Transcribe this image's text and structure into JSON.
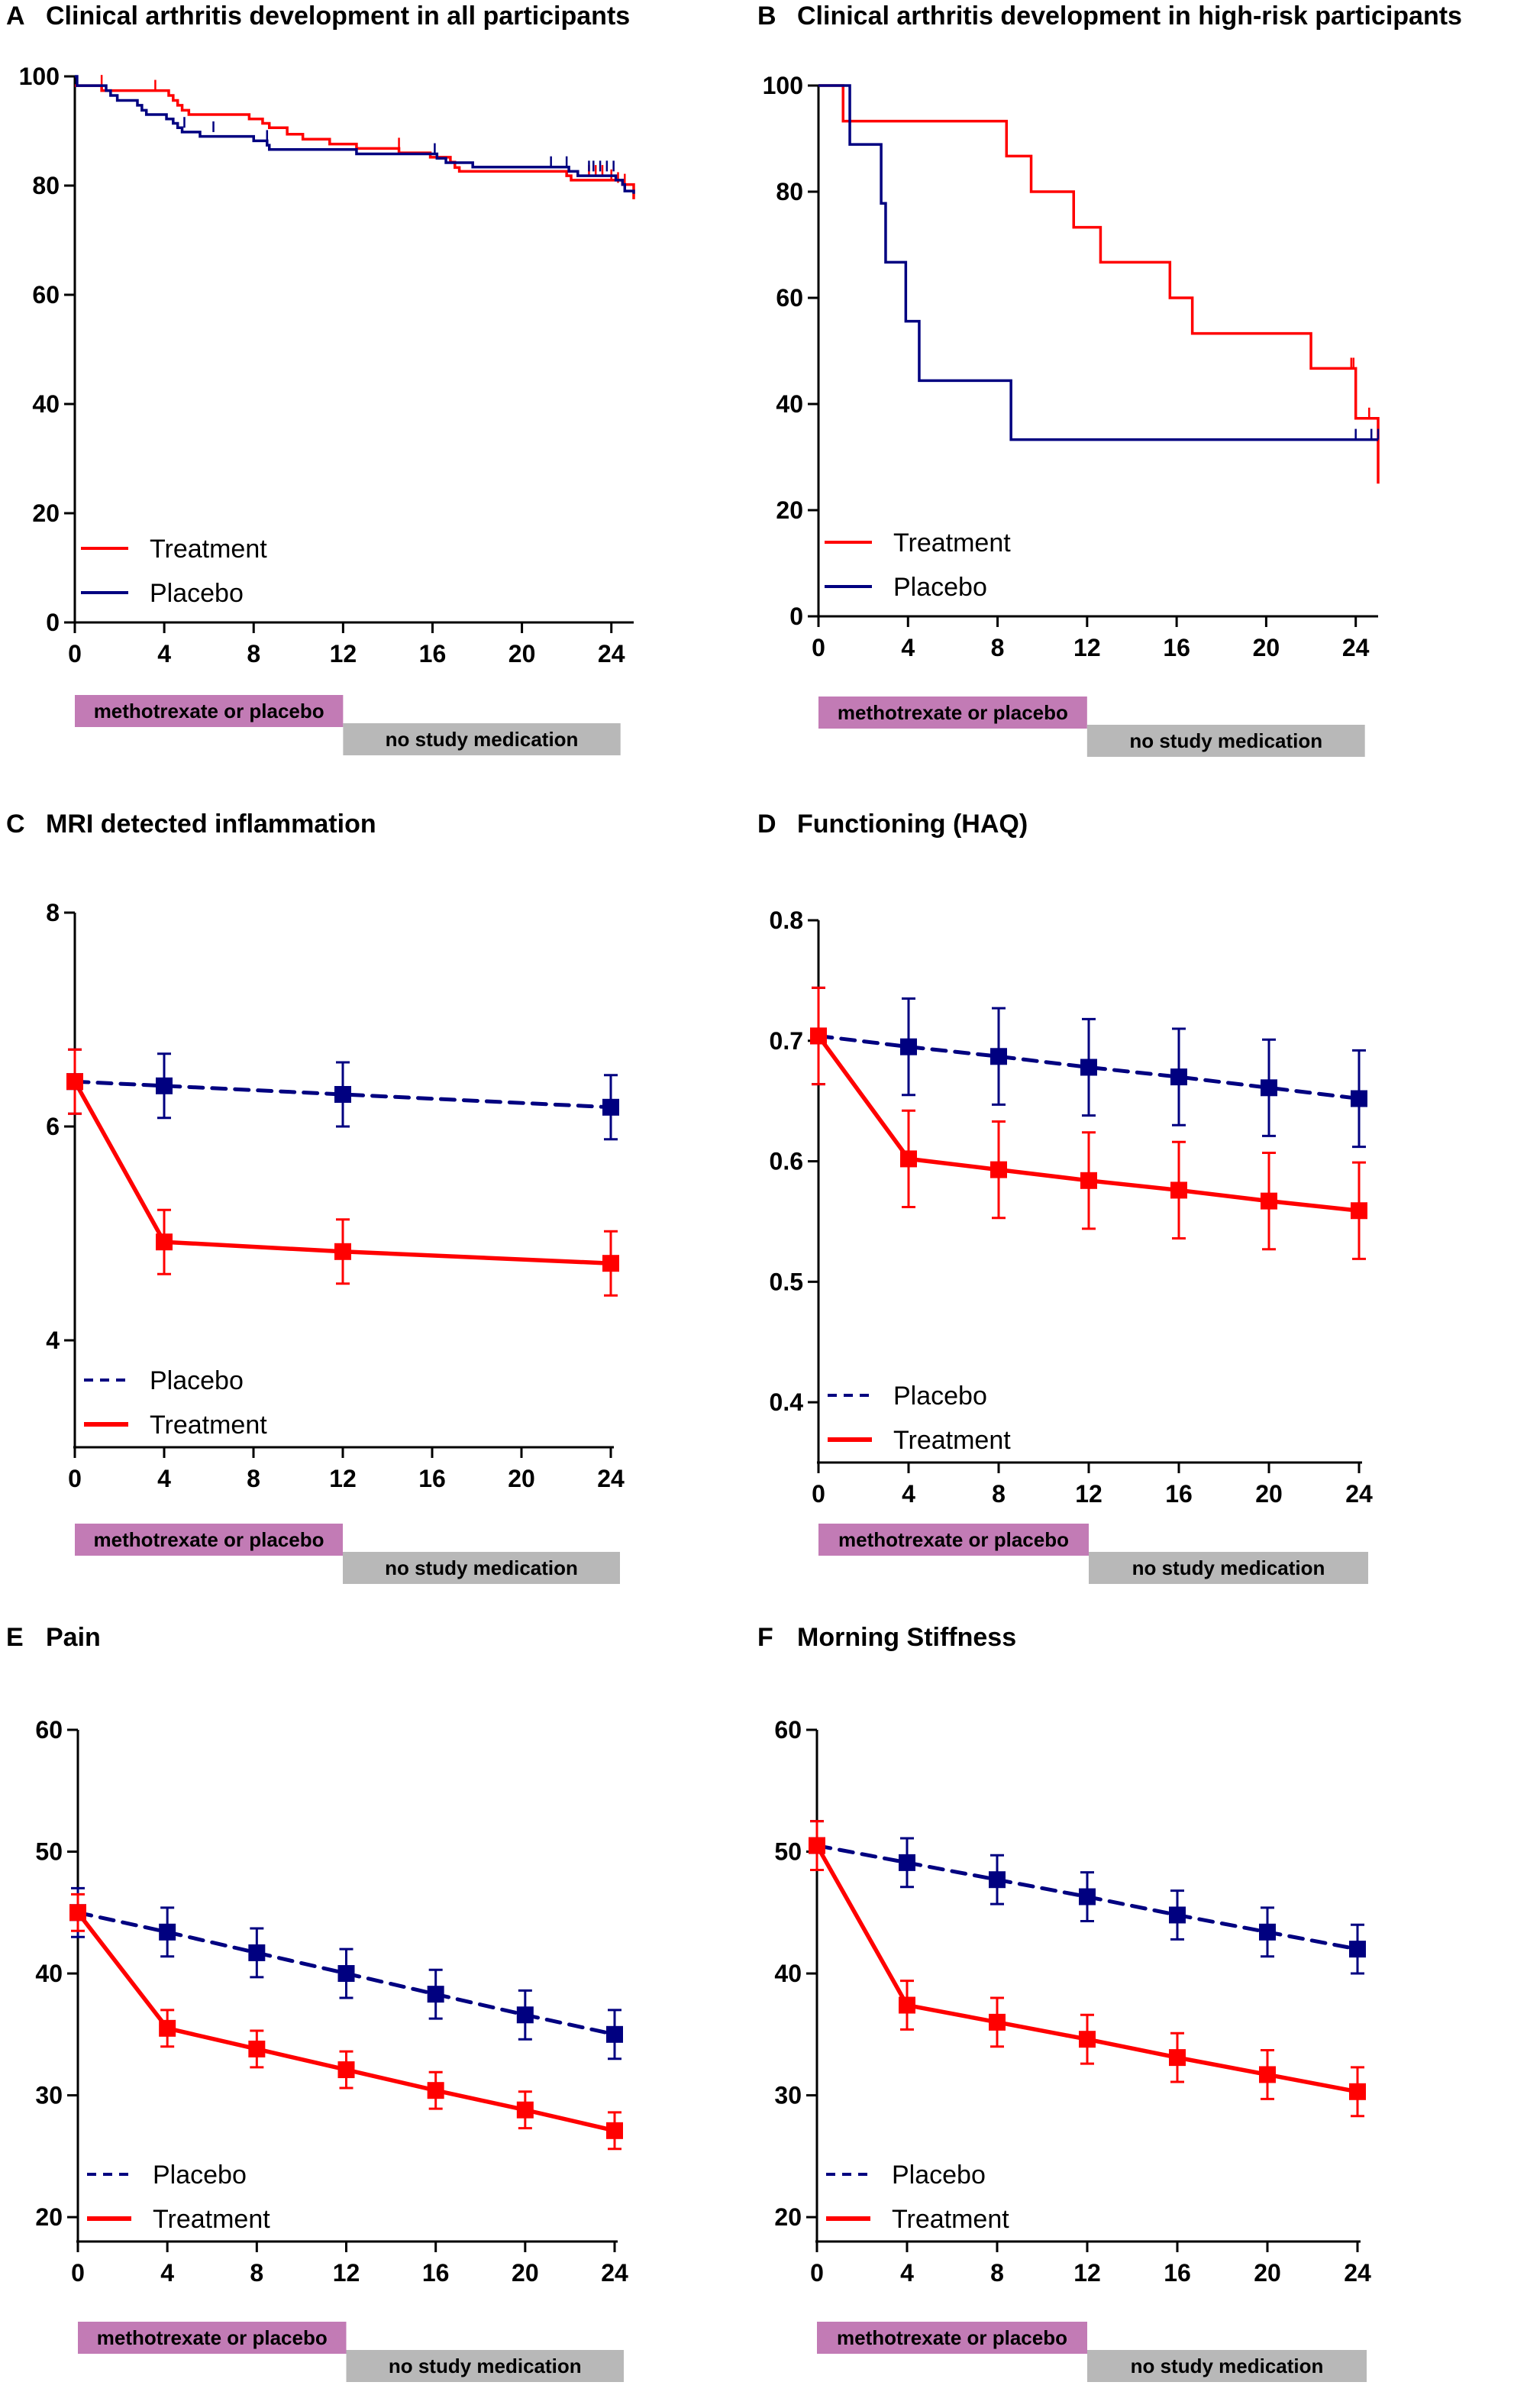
{
  "colors": {
    "treatment": "#ff0000",
    "placebo": "#000080",
    "phase_mtx": "#c27bb5",
    "phase_none": "#b8b8b8"
  },
  "phase_bar": {
    "mtx_label": "methotrexate or placebo",
    "mtx_range": [
      0,
      12
    ],
    "none_label": "no study medication",
    "none_range": [
      12,
      24
    ]
  },
  "chart_data": [
    {
      "id": "A",
      "type": "line",
      "subtype": "kaplan-meier",
      "letter": "A",
      "title": "Clinical arthritis development in all participants",
      "xlabel": "",
      "ylabel": "",
      "xlim": [
        0,
        25
      ],
      "ylim": [
        0,
        100
      ],
      "xticks": [
        0,
        4,
        8,
        12,
        16,
        20,
        24
      ],
      "yticks": [
        0,
        20,
        40,
        60,
        80,
        100
      ],
      "legend": [
        "Treatment",
        "Placebo"
      ],
      "legend_position": "bottom-left",
      "series": [
        {
          "name": "Treatment",
          "style": "solid",
          "steps": [
            [
              0,
              98.3
            ],
            [
              1.2,
              97.4
            ],
            [
              4.2,
              96.5
            ],
            [
              4.4,
              95.6
            ],
            [
              4.6,
              94.7
            ],
            [
              4.8,
              93.8
            ],
            [
              5.1,
              93.0
            ],
            [
              7.8,
              92.2
            ],
            [
              8.4,
              91.4
            ],
            [
              8.7,
              90.6
            ],
            [
              9.5,
              89.4
            ],
            [
              10.2,
              88.5
            ],
            [
              11.4,
              87.6
            ],
            [
              12.6,
              86.8
            ],
            [
              14.5,
              86.0
            ],
            [
              15.9,
              85.2
            ],
            [
              16.8,
              84.3
            ],
            [
              17.0,
              83.3
            ],
            [
              17.2,
              82.6
            ],
            [
              22.0,
              81.8
            ],
            [
              22.2,
              81.0
            ],
            [
              24.5,
              80.2
            ],
            [
              25,
              77.5
            ]
          ],
          "censor": [
            [
              1.2,
              98.3
            ],
            [
              3.6,
              97.4
            ],
            [
              14.5,
              86.8
            ],
            [
              23.0,
              81.8
            ],
            [
              23.3,
              81.8
            ],
            [
              23.6,
              81.8
            ],
            [
              24.0,
              81.0
            ],
            [
              24.3,
              80.5
            ],
            [
              24.6,
              80.2
            ]
          ]
        },
        {
          "name": "Placebo",
          "style": "solid",
          "steps": [
            [
              0,
              100
            ],
            [
              0.1,
              98.3
            ],
            [
              1.4,
              97.4
            ],
            [
              1.6,
              96.5
            ],
            [
              1.9,
              95.6
            ],
            [
              2.8,
              94.7
            ],
            [
              3.0,
              93.8
            ],
            [
              3.2,
              93.0
            ],
            [
              4.1,
              92.2
            ],
            [
              4.4,
              91.4
            ],
            [
              4.6,
              90.6
            ],
            [
              4.8,
              89.8
            ],
            [
              5.6,
              89.0
            ],
            [
              8.0,
              88.2
            ],
            [
              8.6,
              87.4
            ],
            [
              8.7,
              86.6
            ],
            [
              12.6,
              85.8
            ],
            [
              16.2,
              85.0
            ],
            [
              16.6,
              84.2
            ],
            [
              17.8,
              83.4
            ],
            [
              22.1,
              82.6
            ],
            [
              22.5,
              81.8
            ],
            [
              24.2,
              81.0
            ],
            [
              24.5,
              80.2
            ],
            [
              24.6,
              79.0
            ],
            [
              25,
              78.5
            ]
          ],
          "censor": [
            [
              4.9,
              90.6
            ],
            [
              6.2,
              89.8
            ],
            [
              8.6,
              88.2
            ],
            [
              16.1,
              85.8
            ],
            [
              21.3,
              83.4
            ],
            [
              22.0,
              83.4
            ],
            [
              23.0,
              82.6
            ],
            [
              23.2,
              82.6
            ],
            [
              23.5,
              82.6
            ],
            [
              23.8,
              82.6
            ],
            [
              24.1,
              82.6
            ]
          ]
        }
      ]
    },
    {
      "id": "B",
      "type": "line",
      "subtype": "kaplan-meier",
      "letter": "B",
      "title": "Clinical arthritis development in high-risk participants",
      "xlabel": "",
      "ylabel": "",
      "xlim": [
        0,
        25
      ],
      "ylim": [
        0,
        100
      ],
      "xticks": [
        0,
        4,
        8,
        12,
        16,
        20,
        24
      ],
      "yticks": [
        0,
        20,
        40,
        60,
        80,
        100
      ],
      "legend": [
        "Treatment",
        "Placebo"
      ],
      "legend_position": "bottom-left",
      "series": [
        {
          "name": "Treatment",
          "style": "solid",
          "steps": [
            [
              0,
              100
            ],
            [
              1.1,
              93.3
            ],
            [
              8.4,
              86.7
            ],
            [
              9.5,
              80.0
            ],
            [
              11.4,
              73.3
            ],
            [
              12.6,
              66.7
            ],
            [
              15.7,
              60.0
            ],
            [
              16.7,
              53.3
            ],
            [
              22.0,
              46.7
            ],
            [
              24.0,
              37.3
            ],
            [
              25,
              25.0
            ]
          ],
          "censor": [
            [
              23.8,
              46.7
            ],
            [
              23.9,
              46.7
            ],
            [
              24.6,
              37.3
            ]
          ]
        },
        {
          "name": "Placebo",
          "style": "solid",
          "steps": [
            [
              0,
              100
            ],
            [
              1.4,
              88.9
            ],
            [
              2.8,
              77.8
            ],
            [
              3.0,
              66.7
            ],
            [
              3.9,
              55.6
            ],
            [
              4.5,
              44.4
            ],
            [
              8.6,
              33.3
            ],
            [
              25,
              33.3
            ]
          ],
          "censor": [
            [
              24.0,
              33.3
            ],
            [
              24.7,
              33.3
            ],
            [
              25.0,
              33.3
            ]
          ]
        }
      ]
    },
    {
      "id": "C",
      "type": "line",
      "subtype": "mean-with-error-bars",
      "letter": "C",
      "title": "MRI detected inflammation",
      "xlabel": "",
      "ylabel": "",
      "xlim": [
        0,
        24
      ],
      "ylim": [
        3,
        8
      ],
      "xticks": [
        0,
        4,
        8,
        12,
        16,
        20,
        24
      ],
      "yticks": [
        4,
        6,
        8
      ],
      "ytick_labels": [
        "4",
        "6",
        "8"
      ],
      "legend": [
        "Placebo",
        "Treatment"
      ],
      "legend_position": "bottom-left",
      "x": [
        0,
        4,
        12,
        24
      ],
      "series": [
        {
          "name": "Placebo",
          "style": "dashed",
          "values": [
            6.42,
            6.38,
            6.3,
            6.18
          ],
          "err": [
            0.3,
            0.3,
            0.3,
            0.3
          ]
        },
        {
          "name": "Treatment",
          "style": "solid",
          "values": [
            6.42,
            4.92,
            4.83,
            4.72
          ],
          "err": [
            0.3,
            0.3,
            0.3,
            0.3
          ]
        }
      ]
    },
    {
      "id": "D",
      "type": "line",
      "subtype": "mean-with-error-bars",
      "letter": "D",
      "title": "Functioning (HAQ)",
      "xlabel": "",
      "ylabel": "",
      "xlim": [
        0,
        24
      ],
      "ylim": [
        0.35,
        0.8
      ],
      "xticks": [
        0,
        4,
        8,
        12,
        16,
        20,
        24
      ],
      "yticks": [
        0.4,
        0.5,
        0.6,
        0.7,
        0.8
      ],
      "ytick_labels": [
        "0.4",
        "0.5",
        "0.6",
        "0.7",
        "0.8"
      ],
      "legend": [
        "Placebo",
        "Treatment"
      ],
      "legend_position": "bottom-left",
      "x": [
        0,
        4,
        8,
        12,
        16,
        20,
        24
      ],
      "series": [
        {
          "name": "Placebo",
          "style": "dashed",
          "values": [
            0.704,
            0.695,
            0.687,
            0.678,
            0.67,
            0.661,
            0.652
          ],
          "err": [
            0.04,
            0.04,
            0.04,
            0.04,
            0.04,
            0.04,
            0.04
          ]
        },
        {
          "name": "Treatment",
          "style": "solid",
          "values": [
            0.704,
            0.602,
            0.593,
            0.584,
            0.576,
            0.567,
            0.559
          ],
          "err": [
            0.04,
            0.04,
            0.04,
            0.04,
            0.04,
            0.04,
            0.04
          ]
        }
      ]
    },
    {
      "id": "E",
      "type": "line",
      "subtype": "mean-with-error-bars",
      "letter": "E",
      "title": "Pain",
      "xlabel": "",
      "ylabel": "",
      "xlim": [
        0,
        24
      ],
      "ylim": [
        18,
        60
      ],
      "xticks": [
        0,
        4,
        8,
        12,
        16,
        20,
        24
      ],
      "yticks": [
        20,
        30,
        40,
        50,
        60
      ],
      "ytick_labels": [
        "20",
        "30",
        "40",
        "50",
        "60"
      ],
      "legend": [
        "Placebo",
        "Treatment"
      ],
      "legend_position": "bottom-left",
      "x": [
        0,
        4,
        8,
        12,
        16,
        20,
        24
      ],
      "series": [
        {
          "name": "Placebo",
          "style": "dashed",
          "values": [
            45.0,
            43.4,
            41.7,
            40.0,
            38.3,
            36.6,
            35.0
          ],
          "err": [
            2.0,
            2.0,
            2.0,
            2.0,
            2.0,
            2.0,
            2.0
          ]
        },
        {
          "name": "Treatment",
          "style": "solid",
          "values": [
            45.0,
            35.5,
            33.8,
            32.1,
            30.4,
            28.8,
            27.1
          ],
          "err": [
            1.5,
            1.5,
            1.5,
            1.5,
            1.5,
            1.5,
            1.5
          ]
        }
      ]
    },
    {
      "id": "F",
      "type": "line",
      "subtype": "mean-with-error-bars",
      "letter": "F",
      "title": "Morning Stiffness",
      "xlabel": "",
      "ylabel": "",
      "xlim": [
        0,
        24
      ],
      "ylim": [
        18,
        60
      ],
      "xticks": [
        0,
        4,
        8,
        12,
        16,
        20,
        24
      ],
      "yticks": [
        20,
        30,
        40,
        50,
        60
      ],
      "ytick_labels": [
        "20",
        "30",
        "40",
        "50",
        "60"
      ],
      "legend": [
        "Placebo",
        "Treatment"
      ],
      "legend_position": "bottom-left",
      "x": [
        0,
        4,
        8,
        12,
        16,
        20,
        24
      ],
      "series": [
        {
          "name": "Placebo",
          "style": "dashed",
          "values": [
            50.5,
            49.1,
            47.7,
            46.3,
            44.8,
            43.4,
            42.0
          ],
          "err": [
            2.0,
            2.0,
            2.0,
            2.0,
            2.0,
            2.0,
            2.0
          ]
        },
        {
          "name": "Treatment",
          "style": "solid",
          "values": [
            50.5,
            37.4,
            36.0,
            34.6,
            33.1,
            31.7,
            30.3
          ],
          "err": [
            2.0,
            2.0,
            2.0,
            2.0,
            2.0,
            2.0,
            2.0
          ]
        }
      ]
    }
  ]
}
